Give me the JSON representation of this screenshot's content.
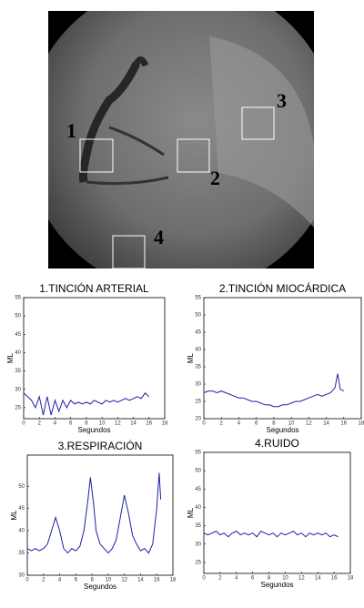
{
  "image": {
    "labels": [
      "1",
      "2",
      "3",
      "4"
    ]
  },
  "chart_data": [
    {
      "type": "line",
      "title": "1.TINCIÓN ARTERIAL",
      "xlabel": "Segundos",
      "ylabel": "ML",
      "color": "#1f1fa8",
      "xlim": [
        0,
        18
      ],
      "xticks": [
        0,
        2,
        4,
        6,
        8,
        10,
        12,
        14,
        16,
        18
      ],
      "ylim": [
        22,
        55
      ],
      "yticks": [
        25,
        30,
        35,
        40,
        45,
        50,
        55
      ],
      "x": [
        0,
        0.5,
        1,
        1.5,
        2,
        2.5,
        3,
        3.5,
        4,
        4.5,
        5,
        5.5,
        6,
        6.5,
        7,
        7.5,
        8,
        8.5,
        9,
        9.5,
        10,
        10.5,
        11,
        11.5,
        12,
        12.5,
        13,
        13.5,
        14,
        14.5,
        15,
        15.5,
        16
      ],
      "values": [
        29,
        28,
        27,
        25,
        28,
        23,
        28,
        23,
        27,
        24,
        27,
        25,
        27,
        26,
        26.5,
        26,
        26.5,
        26,
        27,
        26.5,
        26,
        27,
        26.5,
        27,
        26.5,
        27,
        27.5,
        27,
        27.5,
        28,
        27.5,
        29,
        28
      ]
    },
    {
      "type": "line",
      "title": "2.TINCIÓN MIOCÁRDICA",
      "xlabel": "Segundos",
      "ylabel": "ML",
      "color": "#1f1fa8",
      "xlim": [
        0,
        18
      ],
      "xticks": [
        0,
        2,
        4,
        6,
        8,
        10,
        12,
        14,
        16,
        18
      ],
      "ylim": [
        20,
        55
      ],
      "yticks": [
        20,
        25,
        30,
        35,
        40,
        45,
        50,
        55
      ],
      "x": [
        0,
        0.5,
        1,
        1.5,
        2,
        2.5,
        3,
        3.5,
        4,
        4.5,
        5,
        5.5,
        6,
        6.5,
        7,
        7.5,
        8,
        8.5,
        9,
        9.5,
        10,
        10.5,
        11,
        11.5,
        12,
        12.5,
        13,
        13.5,
        14,
        14.5,
        15,
        15.3,
        15.6,
        16
      ],
      "values": [
        27.5,
        28,
        28,
        27.5,
        28,
        27.5,
        27,
        26.5,
        26,
        26,
        25.5,
        25,
        25,
        24.5,
        24,
        24,
        23.5,
        23.5,
        24,
        24,
        24.5,
        25,
        25,
        25.5,
        26,
        26.5,
        27,
        26.5,
        27,
        27.5,
        29,
        33,
        28.5,
        28
      ]
    },
    {
      "type": "line",
      "title": "3.RESPIRACIÓN",
      "xlabel": "Segundos",
      "ylabel": "ML",
      "color": "#1f1fa8",
      "xlim": [
        0,
        18
      ],
      "xticks": [
        0,
        2,
        4,
        6,
        8,
        10,
        12,
        14,
        16,
        18
      ],
      "ylim": [
        30,
        57
      ],
      "yticks": [
        30,
        35,
        40,
        45,
        50
      ],
      "x": [
        0,
        0.5,
        1,
        1.5,
        2,
        2.5,
        3,
        3.5,
        4,
        4.5,
        5,
        5.5,
        6,
        6.5,
        7,
        7.5,
        7.8,
        8.2,
        8.5,
        9,
        9.5,
        10,
        10.5,
        11,
        11.5,
        12,
        12.5,
        13,
        13.5,
        14,
        14.5,
        15,
        15.5,
        16,
        16.3,
        16.5
      ],
      "values": [
        36,
        35.5,
        36,
        35.5,
        36,
        37,
        40,
        43,
        40,
        36,
        35,
        36,
        35.5,
        36.5,
        40,
        47,
        52,
        46,
        40,
        37,
        36,
        35,
        36,
        38,
        43,
        48,
        44,
        39,
        37,
        35.5,
        36,
        35,
        37,
        45,
        53,
        47
      ]
    },
    {
      "type": "line",
      "title": "4.RUIDO",
      "xlabel": "Segundos",
      "ylabel": "ML",
      "color": "#1f1fa8",
      "xlim": [
        0,
        18
      ],
      "xticks": [
        0,
        2,
        4,
        6,
        8,
        10,
        12,
        14,
        16,
        18
      ],
      "ylim": [
        22,
        55
      ],
      "yticks": [
        25,
        30,
        35,
        40,
        45,
        50,
        55
      ],
      "x": [
        0,
        0.5,
        1,
        1.5,
        2,
        2.5,
        3,
        3.5,
        4,
        4.5,
        5,
        5.5,
        6,
        6.5,
        7,
        7.5,
        8,
        8.5,
        9,
        9.5,
        10,
        10.5,
        11,
        11.5,
        12,
        12.5,
        13,
        13.5,
        14,
        14.5,
        15,
        15.5,
        16,
        16.5
      ],
      "values": [
        33,
        32.5,
        33,
        33.5,
        32.5,
        33,
        32,
        33,
        33.5,
        32.5,
        33,
        32.5,
        33,
        32,
        33.5,
        33,
        32.5,
        33,
        32,
        33,
        32.5,
        33,
        33.5,
        32.5,
        33,
        32,
        33,
        32.5,
        33,
        32.5,
        33,
        32,
        32.5,
        32
      ]
    }
  ]
}
